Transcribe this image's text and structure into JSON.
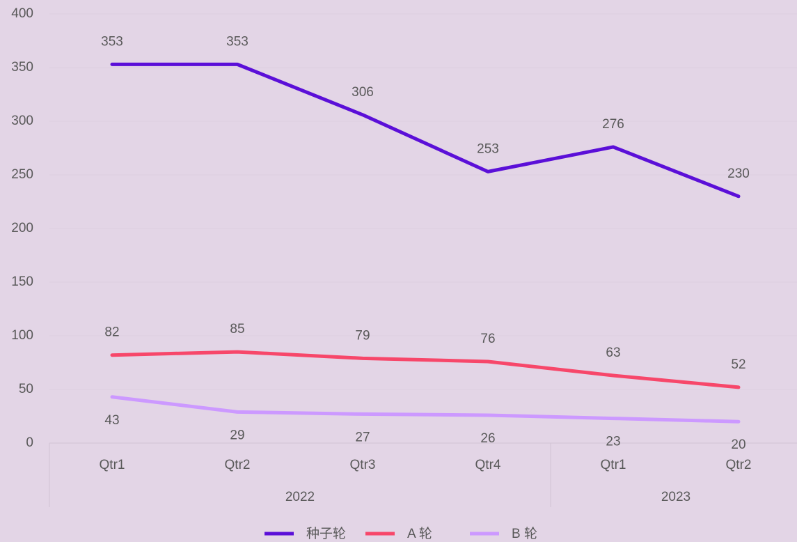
{
  "chart_data": {
    "type": "line",
    "category_groups": [
      {
        "name": "2022",
        "categories": [
          "Qtr1",
          "Qtr2",
          "Qtr3",
          "Qtr4"
        ]
      },
      {
        "name": "2023",
        "categories": [
          "Qtr1",
          "Qtr2"
        ]
      }
    ],
    "series": [
      {
        "name": "种子轮",
        "color": "#5b0fd8",
        "values": [
          353,
          353,
          306,
          253,
          276,
          230
        ],
        "label_position": "above"
      },
      {
        "name": "A 轮",
        "color": "#f7476a",
        "values": [
          82,
          85,
          79,
          76,
          63,
          52
        ],
        "label_position": "above"
      },
      {
        "name": "B 轮",
        "color": "#cc99ff",
        "values": [
          43,
          29,
          27,
          26,
          23,
          20
        ],
        "label_position": "below"
      }
    ],
    "ylim": [
      0,
      400
    ],
    "yticks": [
      0,
      50,
      100,
      150,
      200,
      250,
      300,
      350,
      400
    ],
    "grid": true,
    "legend": "bottom"
  }
}
